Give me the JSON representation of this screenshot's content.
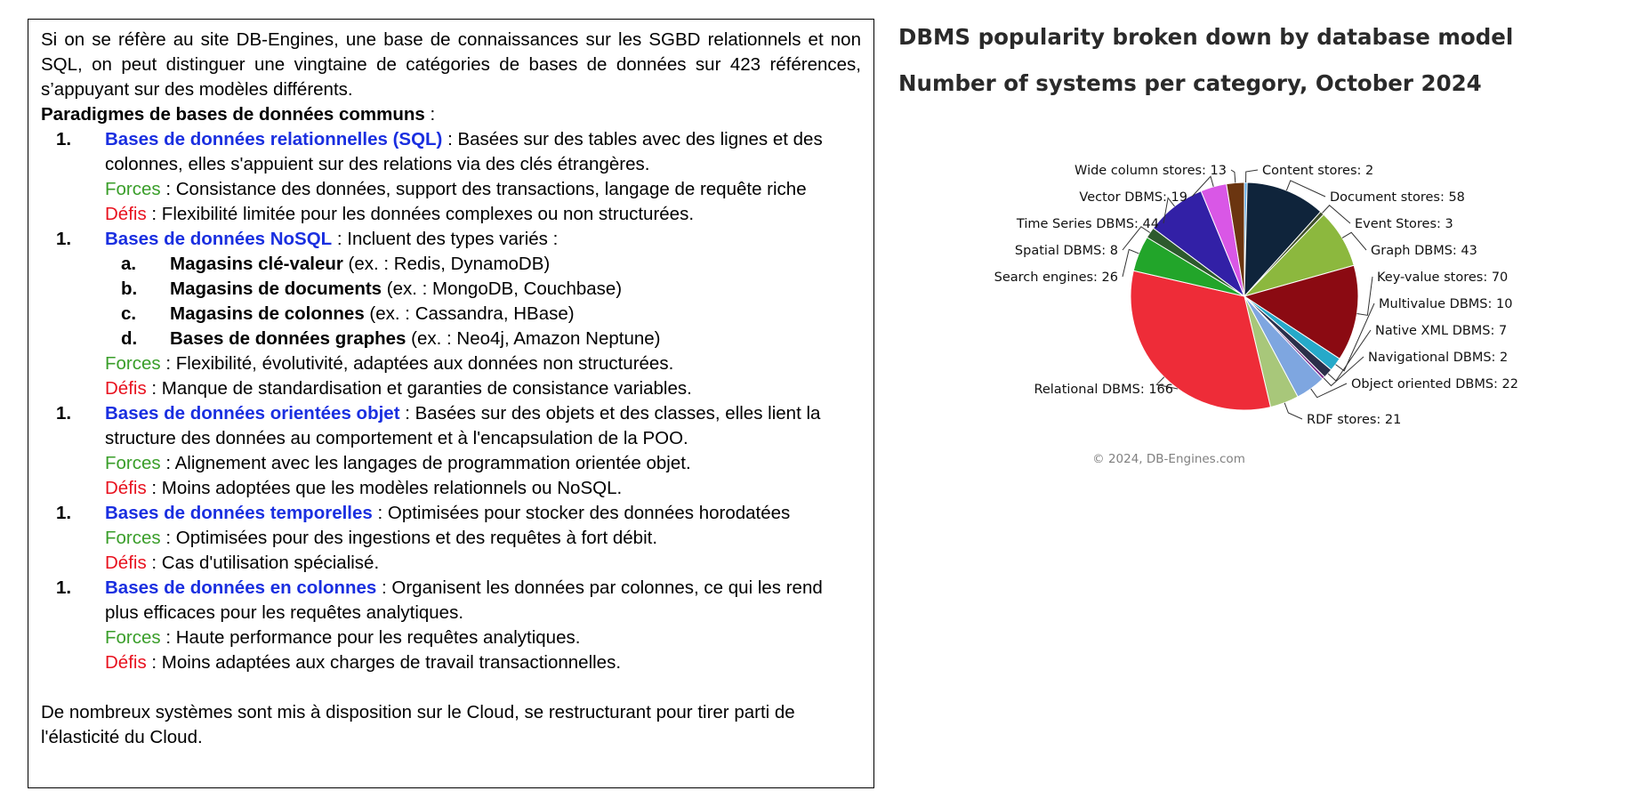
{
  "text": {
    "intro": "Si on se réfère au site DB-Engines, une base de connaissances sur les SGBD relationnels et non SQL, on peut distinguer une vingtaine de catégories de bases de données sur 423 références, s’appuyant sur des modèles différents.",
    "paradigms_heading": "Paradigmes de bases de données communs",
    "paradigms_suffix": " :",
    "items": [
      {
        "number": "1.",
        "name": "Bases de données relationnelles (SQL)",
        "desc": " : Basées sur des tables avec des lignes et des colonnes, elles s'appuient sur des relations via des clés étrangères.",
        "forces_label": "Forces",
        "forces": " : Consistance des données, support des transactions, langage de requête riche",
        "defis_label": "Défis",
        "defis": " : Flexibilité limitée pour les données complexes ou non structurées."
      },
      {
        "number": "1.",
        "name": "Bases de données NoSQL",
        "desc": " : Incluent des types variés :",
        "subs": [
          {
            "letter": "a.",
            "name": "Magasins clé-valeur",
            "rest": " (ex. : Redis, DynamoDB)"
          },
          {
            "letter": "b.",
            "name": "Magasins de documents",
            "rest": " (ex. : MongoDB, Couchbase)"
          },
          {
            "letter": "c.",
            "name": "Magasins de colonnes",
            "rest": " (ex. : Cassandra, HBase)"
          },
          {
            "letter": "d.",
            "name": "Bases de données graphes",
            "rest": " (ex. : Neo4j, Amazon Neptune)"
          }
        ],
        "forces_label": "Forces",
        "forces": " : Flexibilité, évolutivité, adaptées aux données non structurées.",
        "defis_label": "Défis",
        "defis": " : Manque de standardisation et garanties de consistance variables."
      },
      {
        "number": "1.",
        "name": "Bases de données orientées objet",
        "desc": " : Basées sur des objets et des classes, elles lient la structure des données au comportement et à l'encapsulation de la POO.",
        "forces_label": "Forces",
        "forces": " : Alignement avec les langages de programmation orientée objet.",
        "defis_label": "Défis",
        "defis": " : Moins adoptées que les modèles relationnels ou NoSQL."
      },
      {
        "number": "1.",
        "name": "Bases de données temporelles",
        "desc": " : Optimisées pour stocker des données horodatées",
        "forces_label": "Forces",
        "forces": " : Optimisées pour des ingestions et des requêtes à fort débit.",
        "defis_label": "Défis",
        "defis": " : Cas d'utilisation spécialisé."
      },
      {
        "number": "1.",
        "name": "Bases de données en colonnes",
        "desc": " : Organisent les données par colonnes, ce qui les rend plus efficaces pour les requêtes analytiques.",
        "forces_label": "Forces",
        "forces": " : Haute performance pour les requêtes analytiques.",
        "defis_label": "Défis",
        "defis": " : Moins adaptées aux charges de travail transactionnelles."
      }
    ],
    "conclusion": "De nombreux systèmes sont mis à disposition sur le Cloud, se restructurant pour tirer parti de l'élasticité du Cloud."
  },
  "colors": {
    "link_blue": "#1a2fe0",
    "forces_green": "#3a9e2a",
    "defis_red": "#e8121f"
  },
  "chart_data": {
    "type": "pie",
    "title": "DBMS popularity broken down by database model",
    "subtitle": "Number of systems per category, October 2024",
    "credit": "© 2024, DB-Engines.com",
    "slices": [
      {
        "name": "Content stores",
        "value": 2,
        "color": "#5aa9e6"
      },
      {
        "name": "Document stores",
        "value": 58,
        "color": "#0f243b"
      },
      {
        "name": "Event Stores",
        "value": 3,
        "color": "#3f4f2a"
      },
      {
        "name": "Graph DBMS",
        "value": 43,
        "color": "#8cb83e"
      },
      {
        "name": "Key-value stores",
        "value": 70,
        "color": "#8b0a12"
      },
      {
        "name": "Multivalue DBMS",
        "value": 10,
        "color": "#26a9c9"
      },
      {
        "name": "Native XML DBMS",
        "value": 7,
        "color": "#2b2f4a"
      },
      {
        "name": "Navigational DBMS",
        "value": 2,
        "color": "#7a2a8a"
      },
      {
        "name": "Object oriented DBMS",
        "value": 22,
        "color": "#7ea6e0"
      },
      {
        "name": "RDF stores",
        "value": 21,
        "color": "#a8c77a"
      },
      {
        "name": "Relational DBMS",
        "value": 166,
        "color": "#ee2c38"
      },
      {
        "name": "Search engines",
        "value": 26,
        "color": "#22a52a"
      },
      {
        "name": "Spatial DBMS",
        "value": 8,
        "color": "#2d5a2d"
      },
      {
        "name": "Time Series DBMS",
        "value": 44,
        "color": "#3220a6"
      },
      {
        "name": "Vector DBMS",
        "value": 19,
        "color": "#d957e6"
      },
      {
        "name": "Wide column stores",
        "value": 13,
        "color": "#6b3510"
      }
    ]
  }
}
